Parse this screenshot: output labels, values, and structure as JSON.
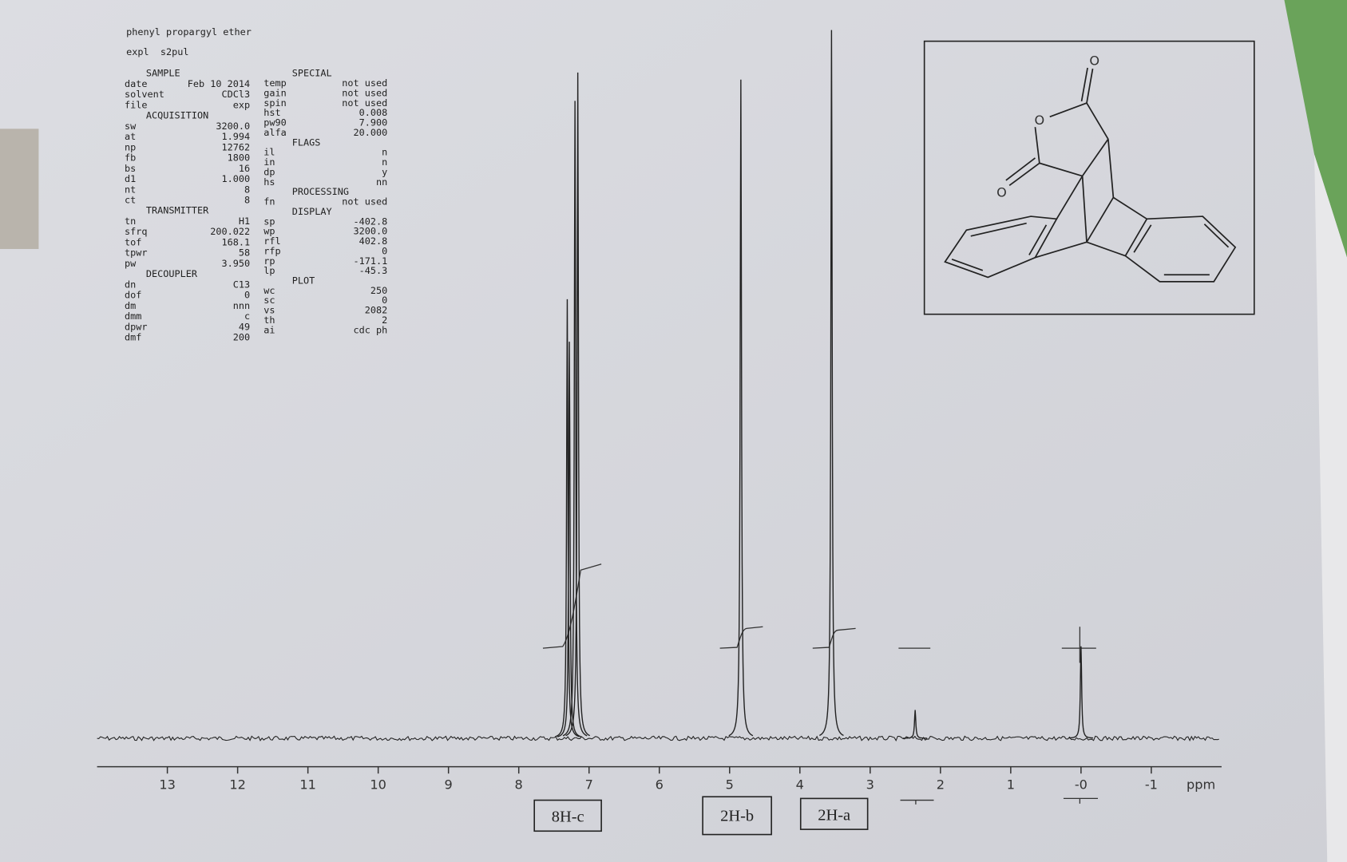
{
  "chart_data": {
    "type": "nmr",
    "title": "phenyl propargyl ether",
    "subtitle": "expl  s2pul",
    "x_label": "ppm",
    "xlim": [
      14,
      -2
    ],
    "xticks": [
      13,
      12,
      11,
      10,
      9,
      8,
      7,
      6,
      5,
      4,
      3,
      2,
      1,
      {
        "value": 0,
        "label": "-0"
      },
      -1
    ],
    "ylim": [
      0,
      100
    ],
    "x": [
      7.31,
      7.28,
      7.2,
      7.16,
      4.84,
      3.55,
      2.36,
      0
    ],
    "values": [
      62,
      56,
      90,
      94,
      93,
      100,
      4,
      13
    ],
    "color": "#222222",
    "annotations": [
      "8H-c",
      "2H-b",
      "2H-a"
    ],
    "structure_labels": [
      "O",
      "O",
      "O"
    ],
    "parameters": {
      "left": [
        {
          "section": "SAMPLE"
        },
        {
          "key": "date",
          "value": "Feb 10 2014"
        },
        {
          "key": "solvent",
          "value": "CDCl3"
        },
        {
          "key": "file",
          "value": "exp"
        },
        {
          "section": "ACQUISITION"
        },
        {
          "key": "sw",
          "value": "3200.0"
        },
        {
          "key": "at",
          "value": "1.994"
        },
        {
          "key": "np",
          "value": "12762"
        },
        {
          "key": "fb",
          "value": "1800"
        },
        {
          "key": "bs",
          "value": "16"
        },
        {
          "key": "d1",
          "value": "1.000"
        },
        {
          "key": "nt",
          "value": "8"
        },
        {
          "key": "ct",
          "value": "8"
        },
        {
          "section": "TRANSMITTER"
        },
        {
          "key": "tn",
          "value": "H1"
        },
        {
          "key": "sfrq",
          "value": "200.022"
        },
        {
          "key": "tof",
          "value": "168.1"
        },
        {
          "key": "tpwr",
          "value": "58"
        },
        {
          "key": "pw",
          "value": "3.950"
        },
        {
          "section": "DECOUPLER"
        },
        {
          "key": "dn",
          "value": "C13"
        },
        {
          "key": "dof",
          "value": "0"
        },
        {
          "key": "dm",
          "value": "nnn"
        },
        {
          "key": "dmm",
          "value": "c"
        },
        {
          "key": "dpwr",
          "value": "49"
        },
        {
          "key": "dmf",
          "value": "200"
        }
      ],
      "right": [
        {
          "section": "SPECIAL"
        },
        {
          "key": "temp",
          "value": "not used"
        },
        {
          "key": "gain",
          "value": "not used"
        },
        {
          "key": "spin",
          "value": "not used"
        },
        {
          "key": "hst",
          "value": "0.008"
        },
        {
          "key": "pw90",
          "value": "7.900"
        },
        {
          "key": "alfa",
          "value": "20.000"
        },
        {
          "section": "FLAGS"
        },
        {
          "key": "il",
          "value": "n"
        },
        {
          "key": "in",
          "value": "n"
        },
        {
          "key": "dp",
          "value": "y"
        },
        {
          "key": "hs",
          "value": "nn"
        },
        {
          "section": "PROCESSING"
        },
        {
          "key": "fn",
          "value": "not used"
        },
        {
          "section": "DISPLAY"
        },
        {
          "key": "sp",
          "value": "-402.8"
        },
        {
          "key": "wp",
          "value": "3200.0"
        },
        {
          "key": "rfl",
          "value": "402.8"
        },
        {
          "key": "rfp",
          "value": "0"
        },
        {
          "key": "rp",
          "value": "-171.1"
        },
        {
          "key": "lp",
          "value": "-45.3"
        },
        {
          "section": "PLOT"
        },
        {
          "key": "wc",
          "value": "250"
        },
        {
          "key": "sc",
          "value": "0"
        },
        {
          "key": "vs",
          "value": "2082"
        },
        {
          "key": "th",
          "value": "2"
        },
        {
          "key": "ai",
          "value": "cdc  ph"
        }
      ]
    }
  }
}
